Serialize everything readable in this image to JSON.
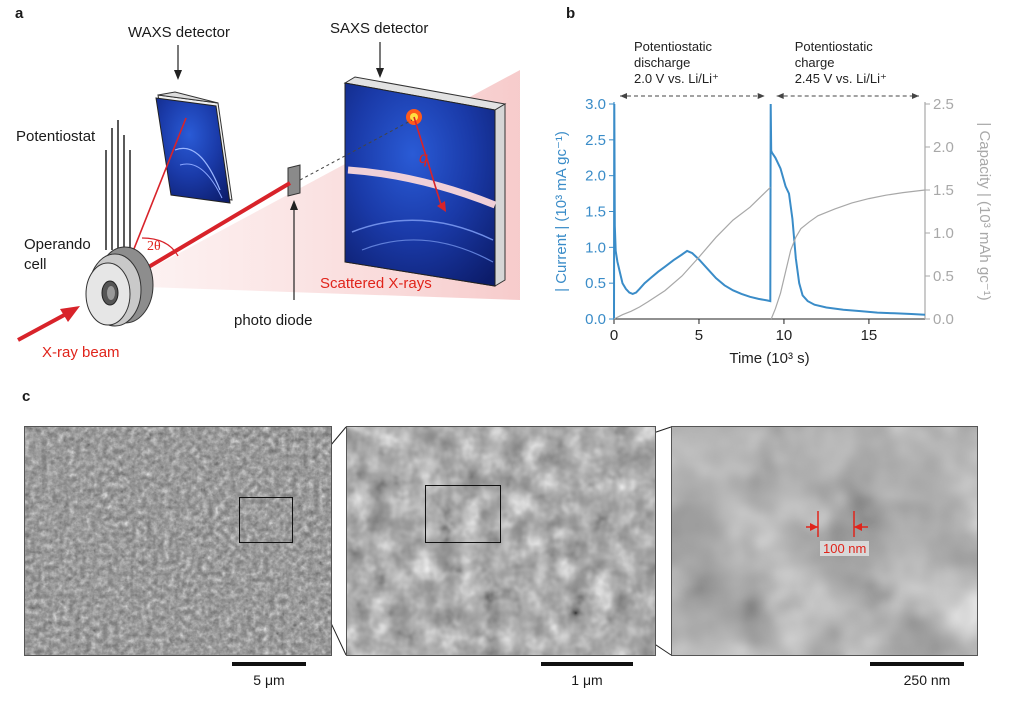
{
  "panels": {
    "a": "a",
    "b": "b",
    "c": "c"
  },
  "panel_a": {
    "waxs_detector": "WAXS detector",
    "saxs_detector": "SAXS detector",
    "potentiostat": "Potentiostat",
    "operando_cell": [
      "Operando",
      "cell"
    ],
    "two_theta": "2θ",
    "q": "q",
    "photo_diode": "photo diode",
    "scattered_xrays": "Scattered X-rays",
    "xray_beam": "X-ray beam"
  },
  "panel_c": {
    "scalebars": [
      "5 μm",
      "1 μm",
      "250 nm"
    ],
    "measure": "100 nm"
  },
  "colors": {
    "current": "#3a8cc8",
    "capacity": "#a8a8a8",
    "red": "#e0241b"
  },
  "chart_data": {
    "type": "line",
    "xlabel": "Time (10³ s)",
    "ylabel_left": "| Current | (10³ mA gc⁻¹)",
    "ylabel_right": "| Capacity | (10³ mAh gc⁻¹)",
    "xlim": [
      0,
      18.3
    ],
    "ylim_left": [
      0,
      3.0
    ],
    "ylim_right": [
      0,
      2.5
    ],
    "xticks": [
      "0",
      "5",
      "10",
      "15"
    ],
    "xtick_values": [
      0,
      5,
      10,
      15
    ],
    "yticks_left": [
      "0.0",
      "0.5",
      "1.0",
      "1.5",
      "2.0",
      "2.5",
      "3.0"
    ],
    "yticks_right": [
      "0.0",
      "0.5",
      "1.0",
      "1.5",
      "2.0",
      "2.5"
    ],
    "annotations": [
      {
        "lines": [
          "Potentiostatic",
          "discharge",
          "2.0 V vs. Li/Li⁺"
        ]
      },
      {
        "lines": [
          "Potentiostatic",
          "charge",
          "2.45 V vs. Li/Li⁺"
        ]
      }
    ],
    "series": [
      {
        "axis": "left",
        "color": "#3a8cc8",
        "x": [
          0,
          0.02,
          0.05,
          0.1,
          0.2,
          0.35,
          0.5,
          0.7,
          0.9,
          1.1,
          1.3,
          1.5,
          1.8,
          2.2,
          2.6,
          3.0,
          3.5,
          4.0,
          4.3,
          4.6,
          5.0,
          5.5,
          6.0,
          6.5,
          7.0,
          7.5,
          8.0,
          8.5,
          9.0,
          9.2,
          9.22,
          9.25,
          9.3,
          9.5,
          9.8,
          10.1,
          10.3,
          10.5,
          10.7,
          10.9,
          11.1,
          11.4,
          11.8,
          12.5,
          13.5,
          14.5,
          15.5,
          16.5,
          17.5,
          18.3
        ],
        "y": [
          0,
          3.0,
          1.3,
          0.95,
          0.8,
          0.65,
          0.5,
          0.42,
          0.37,
          0.35,
          0.37,
          0.42,
          0.5,
          0.58,
          0.66,
          0.73,
          0.82,
          0.9,
          0.95,
          0.92,
          0.83,
          0.7,
          0.57,
          0.47,
          0.4,
          0.35,
          0.31,
          0.28,
          0.26,
          0.25,
          3.0,
          2.35,
          2.32,
          2.25,
          2.1,
          1.85,
          1.75,
          1.4,
          0.85,
          0.5,
          0.33,
          0.25,
          0.2,
          0.16,
          0.13,
          0.11,
          0.09,
          0.08,
          0.07,
          0.06
        ]
      },
      {
        "axis": "right",
        "color": "#a8a8a8",
        "x": [
          0,
          0.5,
          1.0,
          1.5,
          2.0,
          3.0,
          4.0,
          5.0,
          6.0,
          7.0,
          8.0,
          9.2,
          9.25,
          9.5,
          9.8,
          10.1,
          10.4,
          10.7,
          11.0,
          11.5,
          12.0,
          13.0,
          14.0,
          15.0,
          16.0,
          17.0,
          18.3
        ],
        "y": [
          0,
          0.05,
          0.09,
          0.14,
          0.2,
          0.33,
          0.5,
          0.72,
          0.95,
          1.15,
          1.3,
          1.53,
          0.0,
          0.12,
          0.3,
          0.55,
          0.8,
          0.95,
          1.05,
          1.13,
          1.2,
          1.28,
          1.35,
          1.4,
          1.44,
          1.47,
          1.5
        ]
      }
    ]
  }
}
